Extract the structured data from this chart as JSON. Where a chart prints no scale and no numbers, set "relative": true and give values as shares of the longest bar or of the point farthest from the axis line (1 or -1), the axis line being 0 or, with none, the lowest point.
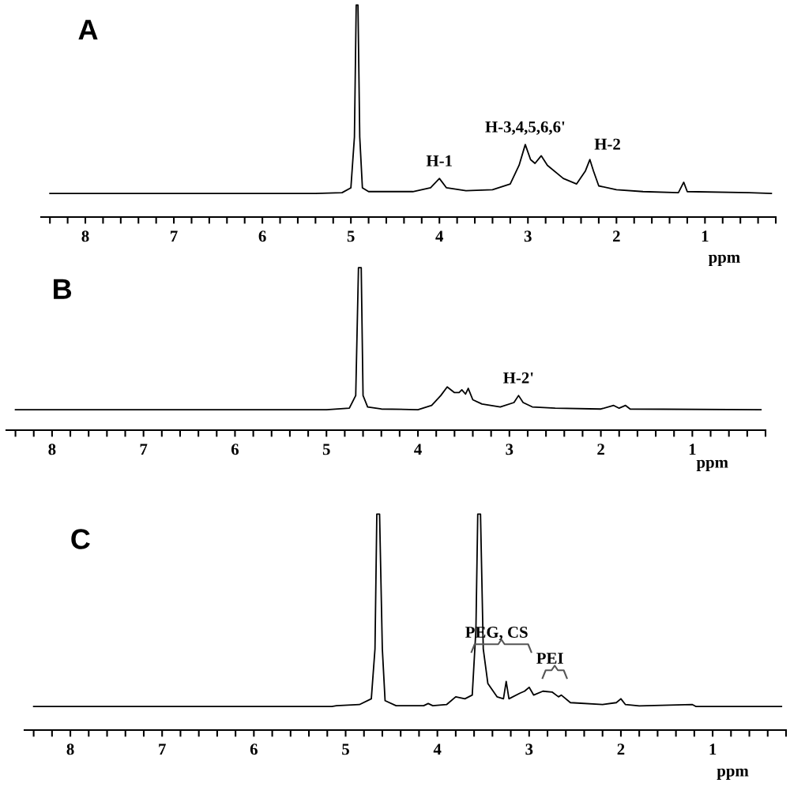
{
  "chart_data": [
    {
      "type": "line",
      "title": "A",
      "xlabel": "ppm",
      "relative": true,
      "tick_labels": "x",
      "xlim": [
        8.5,
        0.2
      ],
      "xticks": [
        1,
        2,
        3,
        4,
        5,
        6,
        7,
        8,
        {
          "value": 8.4,
          "label": null
        },
        {
          "value": 8.2,
          "label": null
        },
        {
          "value": 7.8,
          "label": null
        },
        {
          "value": 7.6,
          "label": null
        },
        {
          "value": 7.4,
          "label": null
        },
        {
          "value": 7.2,
          "label": null
        },
        {
          "value": 6.8,
          "label": null
        },
        {
          "value": 6.6,
          "label": null
        },
        {
          "value": 6.4,
          "label": null
        },
        {
          "value": 6.2,
          "label": null
        },
        {
          "value": 5.8,
          "label": null
        },
        {
          "value": 5.6,
          "label": null
        },
        {
          "value": 5.4,
          "label": null
        },
        {
          "value": 5.2,
          "label": null
        },
        {
          "value": 4.8,
          "label": null
        },
        {
          "value": 4.6,
          "label": null
        },
        {
          "value": 4.4,
          "label": null
        },
        {
          "value": 4.2,
          "label": null
        },
        {
          "value": 3.8,
          "label": null
        },
        {
          "value": 3.6,
          "label": null
        },
        {
          "value": 3.4,
          "label": null
        },
        {
          "value": 3.2,
          "label": null
        },
        {
          "value": 2.8,
          "label": null
        },
        {
          "value": 2.6,
          "label": null
        },
        {
          "value": 2.4,
          "label": null
        },
        {
          "value": 2.2,
          "label": null
        },
        {
          "value": 1.8,
          "label": null
        },
        {
          "value": 1.6,
          "label": null
        },
        {
          "value": 1.4,
          "label": null
        },
        {
          "value": 1.2,
          "label": null
        },
        {
          "value": 0.8,
          "label": null
        },
        {
          "value": 0.6,
          "label": null
        },
        {
          "value": 0.4,
          "label": null
        },
        {
          "value": 0.2,
          "label": null
        }
      ],
      "x": [
        8.4,
        5.4,
        5.1,
        5.0,
        4.96,
        4.94,
        4.92,
        4.9,
        4.87,
        4.8,
        4.3,
        4.1,
        4.0,
        3.92,
        3.7,
        3.4,
        3.2,
        3.1,
        3.03,
        2.97,
        2.92,
        2.85,
        2.78,
        2.6,
        2.45,
        2.35,
        2.3,
        2.26,
        2.2,
        2.0,
        1.7,
        1.3,
        1.24,
        1.2,
        0.5,
        0.25
      ],
      "series": [
        {
          "color": "#000000",
          "values": [
            0.111,
            0.111,
            0.115,
            0.138,
            0.378,
            1,
            1,
            0.378,
            0.138,
            0.12,
            0.12,
            0.138,
            0.182,
            0.138,
            0.124,
            0.129,
            0.156,
            0.244,
            0.342,
            0.271,
            0.253,
            0.289,
            0.244,
            0.182,
            0.156,
            0.218,
            0.271,
            0.218,
            0.147,
            0.129,
            0.12,
            0.115,
            0.164,
            0.12,
            0.115,
            0.111
          ]
        }
      ],
      "annotations": [
        {
          "text": "H-1",
          "x": 4.0,
          "y": 0.182
        },
        {
          "text": "H-3,4,5,6,6'",
          "x": 3.03,
          "y": 0.342
        },
        {
          "text": "H-2",
          "x": 2.3,
          "y": 0.271
        }
      ]
    },
    {
      "type": "line",
      "title": "B",
      "xlabel": "ppm",
      "relative": true,
      "tick_labels": "x",
      "xlim": [
        8.5,
        0.2
      ],
      "xticks": [
        1,
        2,
        3,
        4,
        5,
        6,
        7,
        8,
        {
          "value": 8.4,
          "label": null
        },
        {
          "value": 8.2,
          "label": null
        },
        {
          "value": 7.8,
          "label": null
        },
        {
          "value": 7.6,
          "label": null
        },
        {
          "value": 7.4,
          "label": null
        },
        {
          "value": 7.2,
          "label": null
        },
        {
          "value": 6.8,
          "label": null
        },
        {
          "value": 6.6,
          "label": null
        },
        {
          "value": 6.4,
          "label": null
        },
        {
          "value": 6.2,
          "label": null
        },
        {
          "value": 5.8,
          "label": null
        },
        {
          "value": 5.6,
          "label": null
        },
        {
          "value": 5.4,
          "label": null
        },
        {
          "value": 5.2,
          "label": null
        },
        {
          "value": 4.8,
          "label": null
        },
        {
          "value": 4.6,
          "label": null
        },
        {
          "value": 4.4,
          "label": null
        },
        {
          "value": 4.2,
          "label": null
        },
        {
          "value": 3.8,
          "label": null
        },
        {
          "value": 3.6,
          "label": null
        },
        {
          "value": 3.4,
          "label": null
        },
        {
          "value": 3.2,
          "label": null
        },
        {
          "value": 2.8,
          "label": null
        },
        {
          "value": 2.6,
          "label": null
        },
        {
          "value": 2.4,
          "label": null
        },
        {
          "value": 2.2,
          "label": null
        },
        {
          "value": 1.8,
          "label": null
        },
        {
          "value": 1.6,
          "label": null
        },
        {
          "value": 1.4,
          "label": null
        },
        {
          "value": 1.2,
          "label": null
        },
        {
          "value": 0.8,
          "label": null
        },
        {
          "value": 0.6,
          "label": null
        },
        {
          "value": 0.4,
          "label": null
        },
        {
          "value": 0.2,
          "label": null
        }
      ],
      "x": [
        8.4,
        5.0,
        4.75,
        4.68,
        4.65,
        4.62,
        4.6,
        4.55,
        4.4,
        4.0,
        3.85,
        3.75,
        3.68,
        3.6,
        3.55,
        3.52,
        3.48,
        3.45,
        3.4,
        3.3,
        3.1,
        2.95,
        2.9,
        2.85,
        2.75,
        2.5,
        2.0,
        1.86,
        1.8,
        1.73,
        1.68,
        0.25
      ],
      "series": [
        {
          "color": "#000000",
          "values": [
            0.126,
            0.126,
            0.135,
            0.213,
            1,
            1,
            0.213,
            0.143,
            0.13,
            0.126,
            0.152,
            0.213,
            0.266,
            0.231,
            0.231,
            0.248,
            0.222,
            0.257,
            0.187,
            0.161,
            0.143,
            0.17,
            0.213,
            0.17,
            0.143,
            0.135,
            0.13,
            0.152,
            0.135,
            0.152,
            0.13,
            0.126
          ]
        }
      ],
      "annotations": [
        {
          "text": "H-2'",
          "x": 2.9,
          "y": 0.213
        }
      ]
    },
    {
      "type": "line",
      "title": "C",
      "xlabel": "ppm",
      "relative": true,
      "tick_labels": "x",
      "xlim": [
        8.5,
        0.2
      ],
      "xticks": [
        1,
        2,
        3,
        4,
        5,
        6,
        7,
        8,
        {
          "value": 8.4,
          "label": null
        },
        {
          "value": 8.2,
          "label": null
        },
        {
          "value": 7.8,
          "label": null
        },
        {
          "value": 7.6,
          "label": null
        },
        {
          "value": 7.4,
          "label": null
        },
        {
          "value": 7.2,
          "label": null
        },
        {
          "value": 6.8,
          "label": null
        },
        {
          "value": 6.6,
          "label": null
        },
        {
          "value": 6.4,
          "label": null
        },
        {
          "value": 6.2,
          "label": null
        },
        {
          "value": 5.8,
          "label": null
        },
        {
          "value": 5.6,
          "label": null
        },
        {
          "value": 5.4,
          "label": null
        },
        {
          "value": 5.2,
          "label": null
        },
        {
          "value": 4.8,
          "label": null
        },
        {
          "value": 4.6,
          "label": null
        },
        {
          "value": 4.4,
          "label": null
        },
        {
          "value": 4.2,
          "label": null
        },
        {
          "value": 3.8,
          "label": null
        },
        {
          "value": 3.6,
          "label": null
        },
        {
          "value": 3.4,
          "label": null
        },
        {
          "value": 3.2,
          "label": null
        },
        {
          "value": 2.8,
          "label": null
        },
        {
          "value": 2.6,
          "label": null
        },
        {
          "value": 2.4,
          "label": null
        },
        {
          "value": 2.2,
          "label": null
        },
        {
          "value": 1.8,
          "label": null
        },
        {
          "value": 1.6,
          "label": null
        },
        {
          "value": 1.4,
          "label": null
        },
        {
          "value": 1.2,
          "label": null
        },
        {
          "value": 0.8,
          "label": null
        },
        {
          "value": 0.6,
          "label": null
        },
        {
          "value": 0.4,
          "label": null
        },
        {
          "value": 0.2,
          "label": null
        }
      ],
      "x": [
        8.4,
        5.15,
        5.1,
        4.85,
        4.72,
        4.68,
        4.66,
        4.63,
        4.6,
        4.57,
        4.45,
        4.15,
        4.1,
        4.05,
        3.9,
        3.8,
        3.7,
        3.62,
        3.58,
        3.56,
        3.53,
        3.5,
        3.45,
        3.35,
        3.28,
        3.25,
        3.22,
        3.1,
        3.05,
        3.0,
        2.95,
        2.85,
        2.75,
        2.68,
        2.65,
        2.55,
        2.2,
        2.05,
        2.0,
        1.95,
        1.8,
        1.22,
        1.18,
        0.25
      ],
      "series": [
        {
          "color": "#000000",
          "values": [
            0.109,
            0.109,
            0.113,
            0.118,
            0.145,
            0.376,
            1,
            1,
            0.376,
            0.136,
            0.113,
            0.113,
            0.123,
            0.113,
            0.118,
            0.154,
            0.145,
            0.162,
            0.465,
            1,
            1,
            0.376,
            0.216,
            0.154,
            0.145,
            0.225,
            0.145,
            0.171,
            0.18,
            0.198,
            0.162,
            0.18,
            0.176,
            0.154,
            0.162,
            0.127,
            0.118,
            0.127,
            0.145,
            0.118,
            0.112,
            0.118,
            0.109,
            0.109
          ]
        }
      ],
      "annotations": [
        "PEG, CS",
        "PEI"
      ]
    }
  ]
}
